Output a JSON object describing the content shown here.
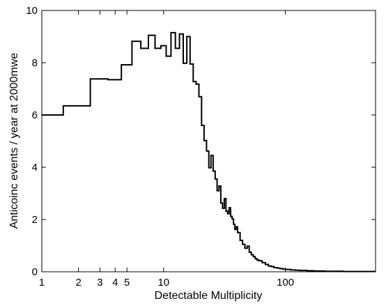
{
  "chart_data": {
    "type": "line",
    "step": true,
    "x_scale": "log",
    "xlabel": "Detectable Multiplicity",
    "ylabel": "Anticoinc events / year at 2000mwe",
    "xlim": [
      1,
      550
    ],
    "ylim": [
      0,
      10
    ],
    "x_ticks": [
      {
        "value": 1,
        "label": "1"
      },
      {
        "value": 2,
        "label": "2"
      },
      {
        "value": 3,
        "label": "3"
      },
      {
        "value": 4,
        "label": "4"
      },
      {
        "value": 5,
        "label": "5"
      },
      {
        "value": 10,
        "label": "10"
      },
      {
        "value": 100,
        "label": "100"
      }
    ],
    "y_ticks": [
      {
        "value": 0,
        "label": "0"
      },
      {
        "value": 2,
        "label": "2"
      },
      {
        "value": 4,
        "label": "4"
      },
      {
        "value": 6,
        "label": "6"
      },
      {
        "value": 8,
        "label": "8"
      },
      {
        "value": 10,
        "label": "10"
      }
    ],
    "grid": false,
    "line_color": "#000000",
    "series": [
      {
        "x": [
          1,
          1.5,
          2.5,
          3.5,
          4.5,
          5.5,
          6.5,
          7.5,
          8.5,
          9.5,
          10.5,
          11.5,
          12.5,
          13.5,
          14.5,
          15.5,
          16.5,
          17.5,
          18.5,
          19.5,
          20.5,
          21.5,
          22.5,
          23.5,
          24.5,
          25.5,
          26.5,
          27.5,
          28.5,
          29.5,
          30.5,
          31.5,
          32.5,
          33.5,
          34.5,
          35.5,
          36.5,
          37.5,
          38.5,
          39.5,
          40.5,
          42.5,
          44.5,
          46.5,
          48.5,
          50.5,
          52.5,
          54.5,
          56.5,
          58.5,
          60.5,
          64.5,
          68.5,
          72.5,
          76.5,
          80.5,
          85.5,
          90.5,
          95.5,
          100.5,
          110.5,
          120.5,
          130.5,
          140.5,
          150.5,
          170.5,
          190.5,
          210.5,
          240.5,
          270.5,
          300.5,
          350.5,
          400.5,
          450.5,
          500.5,
          550
        ],
        "y": [
          6.0,
          6.35,
          7.38,
          7.35,
          7.92,
          8.82,
          8.55,
          9.05,
          8.55,
          8.65,
          8.25,
          9.15,
          8.55,
          9.1,
          7.98,
          9.0,
          7.95,
          7.28,
          7.18,
          6.7,
          5.6,
          5.02,
          4.62,
          3.98,
          4.45,
          3.85,
          3.55,
          3.1,
          3.28,
          2.63,
          2.43,
          2.8,
          2.32,
          2.22,
          2.45,
          2.12,
          2.02,
          1.82,
          1.62,
          1.72,
          1.5,
          1.2,
          1.05,
          0.9,
          0.98,
          0.75,
          0.65,
          0.58,
          0.5,
          0.45,
          0.42,
          0.35,
          0.28,
          0.22,
          0.2,
          0.16,
          0.14,
          0.12,
          0.1,
          0.09,
          0.07,
          0.06,
          0.05,
          0.05,
          0.04,
          0.03,
          0.03,
          0.02,
          0.02,
          0.02,
          0.01,
          0.01,
          0.01,
          0.01,
          0.01,
          0.01
        ]
      }
    ]
  }
}
